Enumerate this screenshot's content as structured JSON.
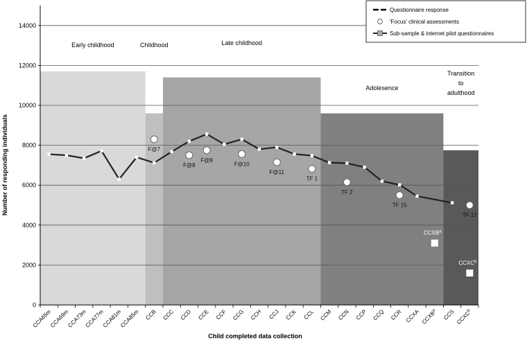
{
  "chart_data": {
    "type": "line",
    "xlabel": "Child completed data collection",
    "ylabel": "Number of responding individuals",
    "ylim": [
      0,
      15000
    ],
    "yticks": [
      0,
      2000,
      4000,
      6000,
      8000,
      10000,
      12000,
      14000
    ],
    "grid": true,
    "legend_position": "top-right",
    "categories": [
      "CCA65m",
      "CCA69m",
      "CCA73m",
      "CCA77m",
      "CCA81m",
      "CCA85m",
      "CCB",
      "CCC",
      "CCD",
      "CCE",
      "CCF",
      "CCG",
      "CCH",
      "CCJ",
      "CCK",
      "CCL",
      "CCM",
      "CCN",
      "CCP",
      "CCQ",
      "CCR",
      "CCXA",
      "CCXB",
      "CCS",
      "CCXC"
    ],
    "category_superscripts": {
      "CCXB": "a",
      "CCXC": "b"
    },
    "series": [
      {
        "name": "Questionnaire response",
        "style": "line",
        "values": [
          {
            "x": "CCA65m",
            "y": 7550
          },
          {
            "x": "CCA69m",
            "y": 7500
          },
          {
            "x": "CCA73m",
            "y": 7350
          },
          {
            "x": "CCA77m",
            "y": 7720
          },
          {
            "x": "CCA81m",
            "y": 6300
          },
          {
            "x": "CCA85m",
            "y": 7400
          },
          {
            "x": "CCB",
            "y": 7120
          },
          {
            "x": "CCC",
            "y": 7680
          },
          {
            "x": "CCD",
            "y": 8200
          },
          {
            "x": "CCE",
            "y": 8560
          },
          {
            "x": "CCF",
            "y": 8050
          },
          {
            "x": "CCG",
            "y": 8300
          },
          {
            "x": "CCH",
            "y": 7800
          },
          {
            "x": "CCJ",
            "y": 7900
          },
          {
            "x": "CCK",
            "y": 7560
          },
          {
            "x": "CCL",
            "y": 7480
          },
          {
            "x": "CCM",
            "y": 7130
          },
          {
            "x": "CCN",
            "y": 7100
          },
          {
            "x": "CCP",
            "y": 6900
          },
          {
            "x": "CCQ",
            "y": 6200
          },
          {
            "x": "CCR",
            "y": 6020
          },
          {
            "x": "CCXA",
            "y": 5450
          },
          {
            "x": "CCS",
            "y": 5120
          }
        ]
      },
      {
        "name": "'Focus' clinical assessments",
        "style": "circle",
        "values": [
          {
            "x": "CCB",
            "y": 8300,
            "label": "F@7"
          },
          {
            "x": "CCD",
            "y": 7500,
            "label": "F@8"
          },
          {
            "x": "CCE",
            "y": 7750,
            "label": "F@9"
          },
          {
            "x": "CCG",
            "y": 7560,
            "label": "F@10"
          },
          {
            "x": "CCJ",
            "y": 7150,
            "label": "F@11"
          },
          {
            "x": "CCL",
            "y": 6820,
            "label": "TF 1"
          },
          {
            "x": "CCN",
            "y": 6150,
            "label": "TF 2"
          },
          {
            "x": "CCR",
            "y": 5500,
            "label": "TF 15"
          },
          {
            "x": "CCXC",
            "y": 5000,
            "label": "TF 17"
          }
        ]
      },
      {
        "name": "Sub-sample & internet pilot questionnaires",
        "style": "square",
        "values": [
          {
            "x": "CCXB",
            "y": 3100,
            "label": "CCXB",
            "sup": "a"
          },
          {
            "x": "CCXC",
            "y": 1600,
            "label": "CCXC",
            "sup": "b"
          }
        ]
      }
    ],
    "stages": [
      {
        "label_lines": [
          "Early childhood"
        ],
        "from": "CCA65m",
        "to": "CCA85m",
        "height": 11700,
        "color": "#d9d9d9"
      },
      {
        "label_lines": [
          "Childhood"
        ],
        "from": "CCB",
        "to": "CCB",
        "height": 9600,
        "color": "#bfbfbf"
      },
      {
        "label_lines": [
          "Late childhood"
        ],
        "from": "CCC",
        "to": "CCL",
        "height": 11400,
        "color": "#a6a6a6"
      },
      {
        "label_lines": [
          "Adolesence"
        ],
        "from": "CCM",
        "to": "CCXB",
        "height": 9600,
        "color": "#808080"
      },
      {
        "label_lines": [
          "Transition",
          "to",
          "adulthood"
        ],
        "from": "CCS",
        "to": "CCXC",
        "height": 7750,
        "color": "#595959"
      }
    ]
  }
}
